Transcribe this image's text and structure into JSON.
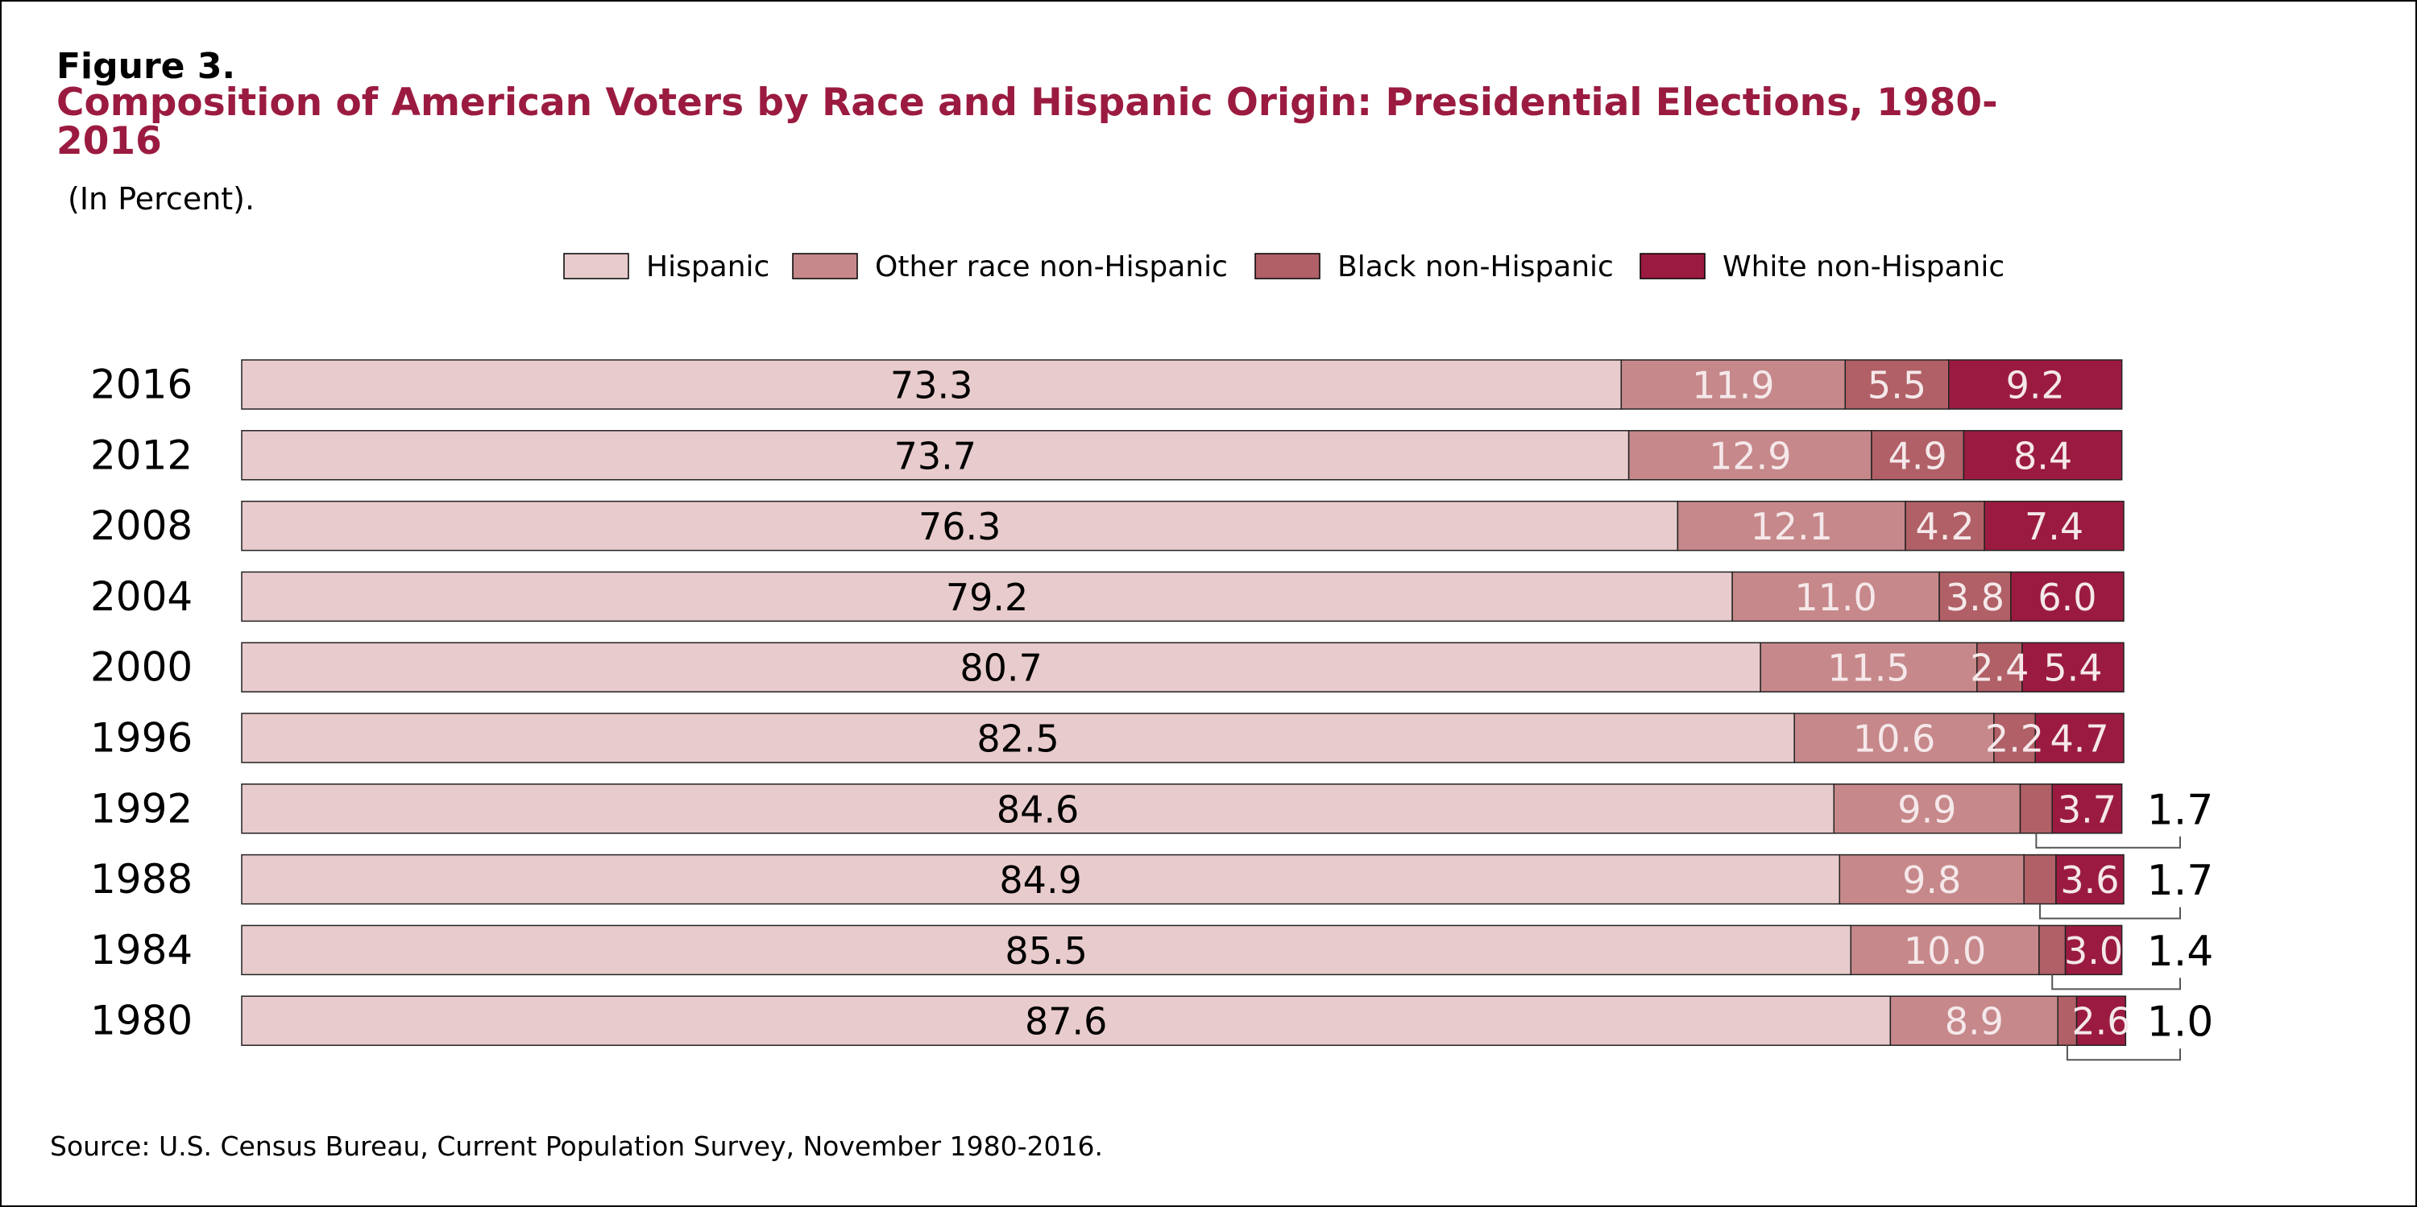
{
  "figure_label": "Figure 3.",
  "title": "Composition of American Voters by Race and Hispanic Origin: Presidential Elections, 1980-2016",
  "subtitle": "(In Percent).",
  "source": "Source: U.S. Census Bureau, Current Population Survey, November 1980-2016.",
  "colors": {
    "hispanic": "#e8cbcc",
    "other_race": "#c6888a",
    "black": "#b06066",
    "white": "#9b1b40",
    "dark_text": "#000000",
    "light_text": "#f5e8ea"
  },
  "chart_data": {
    "type": "bar",
    "orientation": "horizontal",
    "stacked": true,
    "categories": [
      "2016",
      "2012",
      "2008",
      "2004",
      "2000",
      "1996",
      "1992",
      "1988",
      "1984",
      "1980"
    ],
    "series": [
      {
        "name": "Hispanic",
        "values": [
          73.3,
          73.7,
          76.3,
          79.2,
          80.7,
          82.5,
          84.6,
          84.9,
          85.5,
          87.6
        ]
      },
      {
        "name": "Other race non-Hispanic",
        "values": [
          11.9,
          12.9,
          12.1,
          11.0,
          11.5,
          10.6,
          9.9,
          9.8,
          10.0,
          8.9
        ]
      },
      {
        "name": "Black non-Hispanic",
        "values": [
          5.5,
          4.9,
          4.2,
          3.8,
          2.4,
          2.2,
          1.7,
          1.7,
          1.4,
          1.0
        ]
      },
      {
        "name": "White non-Hispanic",
        "values": [
          9.2,
          8.4,
          7.4,
          6.0,
          5.4,
          4.7,
          3.7,
          3.6,
          3.0,
          2.6
        ]
      }
    ],
    "data_labels": [
      [
        "73.3",
        "11.9",
        "5.5",
        "9.2"
      ],
      [
        "73.7",
        "12.9",
        "4.9",
        "8.4"
      ],
      [
        "76.3",
        "12.1",
        "4.2",
        "7.4"
      ],
      [
        "79.2",
        "11.0",
        "3.8",
        "6.0"
      ],
      [
        "80.7",
        "11.5",
        "2.4",
        "5.4"
      ],
      [
        "82.5",
        "10.6",
        "2.2",
        "4.7"
      ],
      [
        "84.6",
        "9.9",
        "1.7",
        "3.7"
      ],
      [
        "84.9",
        "9.8",
        "1.7",
        "3.6"
      ],
      [
        "85.5",
        "10.0",
        "1.4",
        "3.0"
      ],
      [
        "87.6",
        "8.9",
        "1.0",
        "2.6"
      ]
    ],
    "callout_rows": [
      "1992",
      "1988",
      "1984",
      "1980"
    ],
    "legend_position": "top-center",
    "xlim": [
      0,
      100
    ],
    "grid": false
  }
}
